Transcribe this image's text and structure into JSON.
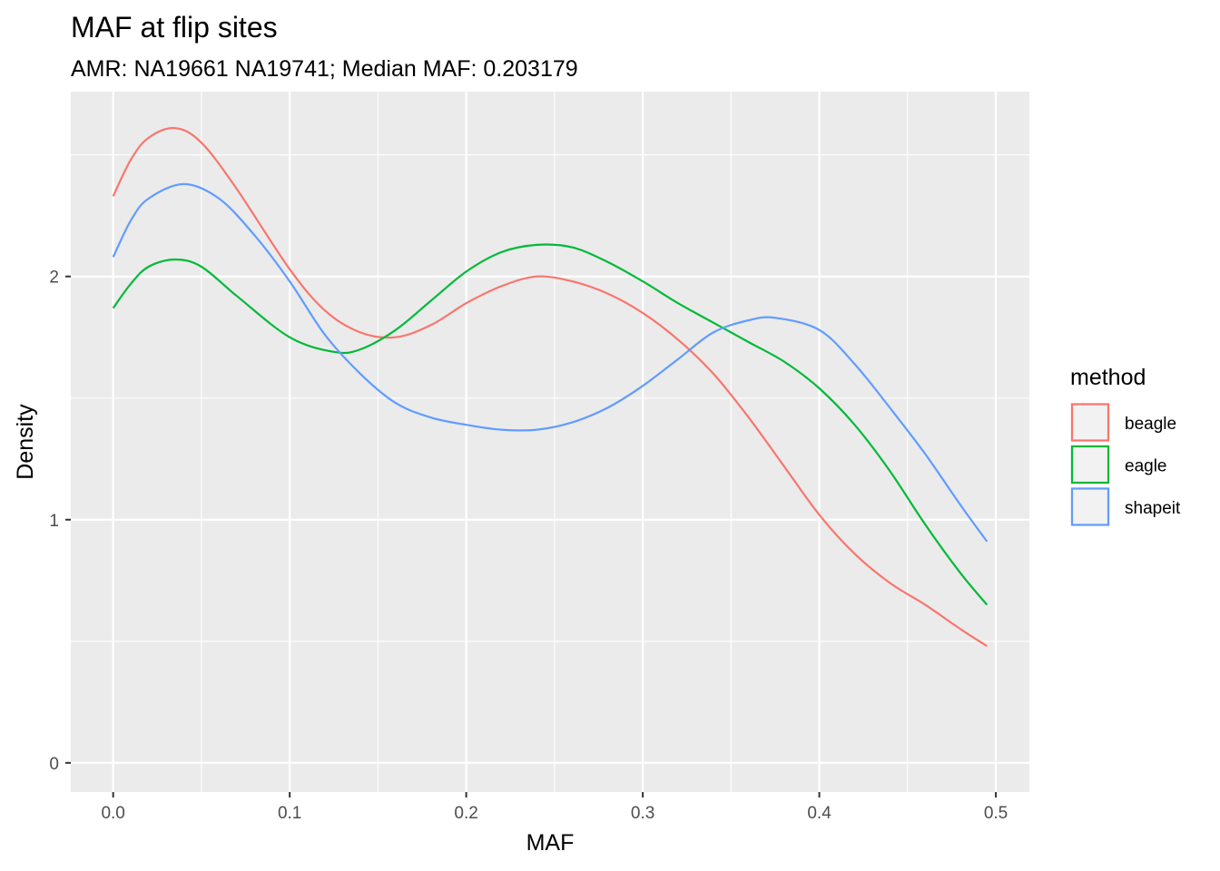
{
  "chart_data": {
    "type": "line",
    "title": "MAF at flip sites",
    "subtitle": "AMR: NA19661 NA19741; Median MAF: 0.203179",
    "xlabel": "MAF",
    "ylabel": "Density",
    "xlim": [
      -0.024,
      0.519
    ],
    "ylim": [
      -0.12,
      2.76
    ],
    "x_ticks": [
      0.0,
      0.1,
      0.2,
      0.3,
      0.4,
      0.5
    ],
    "x_tick_labels": [
      "0.0",
      "0.1",
      "0.2",
      "0.3",
      "0.4",
      "0.5"
    ],
    "y_ticks": [
      0,
      1,
      2
    ],
    "y_tick_labels": [
      "0",
      "1",
      "2"
    ],
    "grid": true,
    "legend": {
      "title": "method",
      "position": "right"
    },
    "series": [
      {
        "name": "beagle",
        "color": "#F8766D",
        "x": [
          0.0,
          0.01,
          0.02,
          0.035,
          0.05,
          0.07,
          0.1,
          0.12,
          0.14,
          0.16,
          0.18,
          0.2,
          0.22,
          0.24,
          0.26,
          0.28,
          0.3,
          0.32,
          0.34,
          0.36,
          0.38,
          0.4,
          0.42,
          0.44,
          0.46,
          0.48,
          0.495
        ],
        "y": [
          2.33,
          2.48,
          2.57,
          2.61,
          2.55,
          2.36,
          2.03,
          1.86,
          1.77,
          1.75,
          1.8,
          1.89,
          1.96,
          2.0,
          1.98,
          1.93,
          1.85,
          1.74,
          1.6,
          1.42,
          1.22,
          1.02,
          0.86,
          0.74,
          0.65,
          0.55,
          0.48
        ]
      },
      {
        "name": "eagle",
        "color": "#00BA38",
        "x": [
          0.0,
          0.01,
          0.02,
          0.035,
          0.05,
          0.07,
          0.1,
          0.125,
          0.14,
          0.16,
          0.18,
          0.2,
          0.22,
          0.24,
          0.26,
          0.28,
          0.3,
          0.32,
          0.34,
          0.36,
          0.38,
          0.4,
          0.42,
          0.44,
          0.46,
          0.48,
          0.495
        ],
        "y": [
          1.87,
          1.97,
          2.04,
          2.07,
          2.04,
          1.92,
          1.75,
          1.69,
          1.7,
          1.78,
          1.9,
          2.02,
          2.1,
          2.13,
          2.12,
          2.06,
          1.98,
          1.89,
          1.81,
          1.73,
          1.65,
          1.54,
          1.39,
          1.2,
          0.98,
          0.78,
          0.65
        ]
      },
      {
        "name": "shapeit",
        "color": "#619CFF",
        "x": [
          0.0,
          0.01,
          0.02,
          0.04,
          0.06,
          0.08,
          0.1,
          0.12,
          0.14,
          0.16,
          0.18,
          0.2,
          0.22,
          0.24,
          0.26,
          0.28,
          0.3,
          0.32,
          0.34,
          0.36,
          0.375,
          0.4,
          0.42,
          0.44,
          0.46,
          0.48,
          0.495
        ],
        "y": [
          2.08,
          2.23,
          2.32,
          2.38,
          2.32,
          2.17,
          1.98,
          1.76,
          1.6,
          1.48,
          1.42,
          1.39,
          1.37,
          1.37,
          1.4,
          1.46,
          1.55,
          1.66,
          1.77,
          1.82,
          1.83,
          1.78,
          1.64,
          1.46,
          1.27,
          1.06,
          0.91
        ]
      }
    ]
  }
}
